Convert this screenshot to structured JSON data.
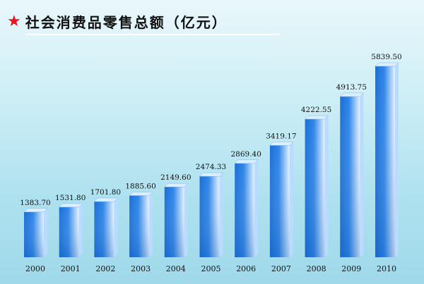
{
  "title": {
    "icon": "star-icon",
    "text": "社会消费品零售总额（亿元）",
    "star_color": "#e8141c"
  },
  "chart_data": {
    "type": "bar",
    "title": "社会消费品零售总额（亿元）",
    "categories": [
      "2000",
      "2001",
      "2002",
      "2003",
      "2004",
      "2005",
      "2006",
      "2007",
      "2008",
      "2009",
      "2010"
    ],
    "values": [
      1383.7,
      1531.8,
      1701.8,
      1885.6,
      2149.6,
      2474.33,
      2869.4,
      3419.17,
      4222.55,
      4913.75,
      5839.5
    ],
    "value_labels": [
      "1383.70",
      "1531.80",
      "1701.80",
      "1885.60",
      "2149.60",
      "2474.33",
      "2869.40",
      "3419.17",
      "4222.55",
      "4913.75",
      "5839.50"
    ],
    "xlabel": "",
    "ylabel": "",
    "grid": false,
    "bar_color": "#2f86e8",
    "bar_highlight": "#e6f3ff"
  }
}
